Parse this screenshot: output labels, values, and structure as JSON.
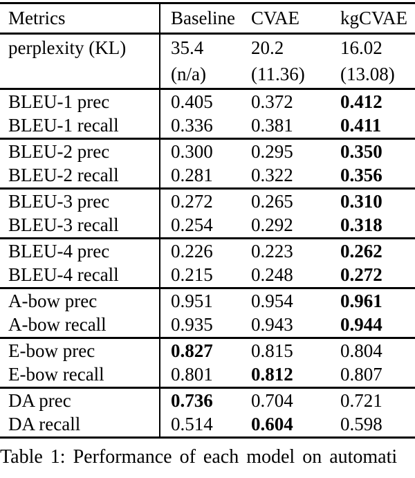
{
  "colors": {
    "text": "#000000",
    "background": "#ffffff",
    "rule": "#000000"
  },
  "table": {
    "header": {
      "metrics": "Metrics",
      "baseline": "Baseline",
      "cvae": "CVAE",
      "kgcvae": "kgCVAE"
    },
    "rows": [
      {
        "metric": "perplexity (KL)",
        "baseline": "35.4",
        "cvae": "20.2",
        "kgcvae": "16.02"
      },
      {
        "metric": "",
        "baseline": "(n/a)",
        "cvae": "(11.36)",
        "kgcvae": "(13.08)"
      },
      {
        "metric": "BLEU-1 prec",
        "baseline": "0.405",
        "cvae": "0.372",
        "kgcvae": "0.412"
      },
      {
        "metric": "BLEU-1 recall",
        "baseline": "0.336",
        "cvae": "0.381",
        "kgcvae": "0.411"
      },
      {
        "metric": "BLEU-2 prec",
        "baseline": "0.300",
        "cvae": "0.295",
        "kgcvae": "0.350"
      },
      {
        "metric": "BLEU-2 recall",
        "baseline": "0.281",
        "cvae": "0.322",
        "kgcvae": "0.356"
      },
      {
        "metric": "BLEU-3 prec",
        "baseline": "0.272",
        "cvae": "0.265",
        "kgcvae": "0.310"
      },
      {
        "metric": "BLEU-3 recall",
        "baseline": "0.254",
        "cvae": "0.292",
        "kgcvae": "0.318"
      },
      {
        "metric": "BLEU-4 prec",
        "baseline": "0.226",
        "cvae": "0.223",
        "kgcvae": "0.262"
      },
      {
        "metric": "BLEU-4 recall",
        "baseline": "0.215",
        "cvae": "0.248",
        "kgcvae": "0.272"
      },
      {
        "metric": "A-bow prec",
        "baseline": "0.951",
        "cvae": "0.954",
        "kgcvae": "0.961"
      },
      {
        "metric": "A-bow recall",
        "baseline": "0.935",
        "cvae": "0.943",
        "kgcvae": "0.944"
      },
      {
        "metric": "E-bow prec",
        "baseline": "0.827",
        "cvae": "0.815",
        "kgcvae": "0.804"
      },
      {
        "metric": "E-bow recall",
        "baseline": "0.801",
        "cvae": "0.812",
        "kgcvae": "0.807"
      },
      {
        "metric": "DA prec",
        "baseline": "0.736",
        "cvae": "0.704",
        "kgcvae": "0.721"
      },
      {
        "metric": "DA recall",
        "baseline": "0.514",
        "cvae": "0.604",
        "kgcvae": "0.598"
      }
    ]
  },
  "caption": "Table 1: Performance of each model on automati"
}
